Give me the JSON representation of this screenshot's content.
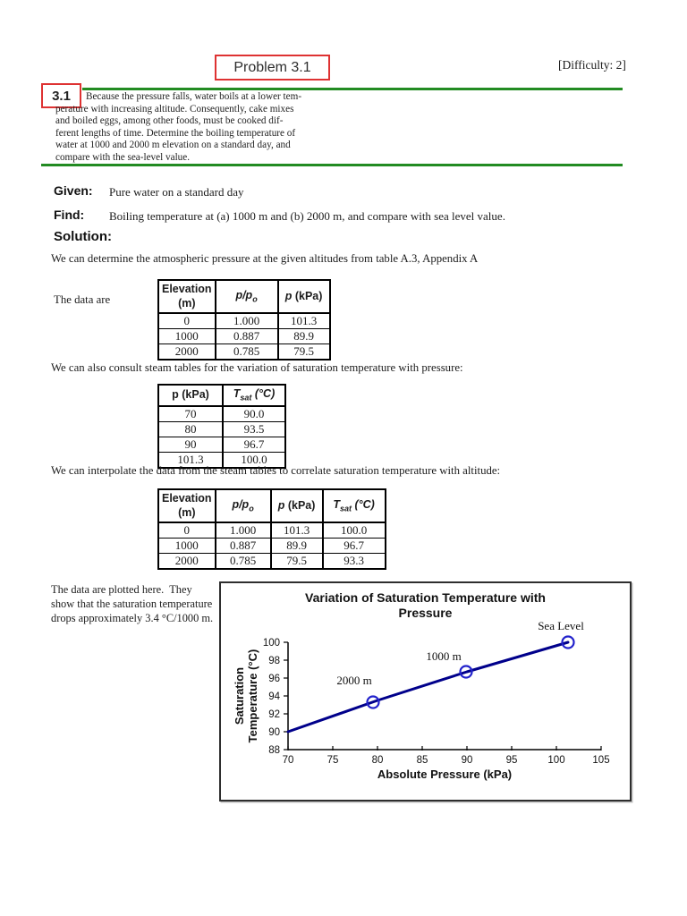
{
  "colors": {
    "accent_red": "#de3232",
    "rule_green": "#228b22",
    "line_navy": "#00008b",
    "marker_blue": "#2222cc",
    "text": "#1c1c1c"
  },
  "header": {
    "problem_label": "Problem 3.1",
    "difficulty": "[Difficulty: 2]"
  },
  "problem": {
    "tag": "3.1",
    "statement": "Because the pressure falls, water boils at a lower tem-\nperature with increasing altitude. Consequently, cake mixes\nand boiled eggs, among other foods, must be cooked dif-\nferent lengths of time. Determine the boiling temperature of\nwater at 1000 and 2000 m elevation on a standard day, and\ncompare with the sea-level value."
  },
  "sections": {
    "given_label": "Given:",
    "given_text": "Pure water on a standard day",
    "find_label": "Find:",
    "find_text": "Boiling temperature at (a) 1000 m and (b) 2000 m, and compare with sea level value.",
    "solution_label": "Solution:",
    "para_atmos": "We can determine the atmospheric pressure at the given altitudes from table A.3, Appendix A",
    "table1_label": "The data are",
    "para_steam": "We can also consult steam tables for the variation of saturation temperature with pressure:",
    "para_interp": "We can interpolate the data from the steam tables to correlate saturation temperature with altitude:",
    "plot_note": "The data are plotted here.  They\nshow that the saturation temperature\ndrops approximately 3.4 °C/1000 m."
  },
  "tables": {
    "atmos": {
      "columns": [
        {
          "segments": [
            {
              "t": "Elevation\n(m)"
            }
          ]
        },
        {
          "segments": [
            {
              "t": "p/p",
              "i": true
            },
            {
              "t": "o",
              "i": true,
              "sub": true
            }
          ]
        },
        {
          "segments": [
            {
              "t": "p",
              "i": true
            },
            {
              "t": " (kPa)"
            }
          ]
        }
      ],
      "rows": [
        [
          "0",
          "1.000",
          "101.3"
        ],
        [
          "1000",
          "0.887",
          "89.9"
        ],
        [
          "2000",
          "0.785",
          "79.5"
        ]
      ]
    },
    "steam": {
      "columns": [
        {
          "segments": [
            {
              "t": "p (kPa)"
            }
          ]
        },
        {
          "segments": [
            {
              "t": "T",
              "i": true
            },
            {
              "t": "sat",
              "i": true,
              "sub": true
            },
            {
              "t": " (°C)",
              "i": true
            }
          ]
        }
      ],
      "rows": [
        [
          "70",
          "90.0"
        ],
        [
          "80",
          "93.5"
        ],
        [
          "90",
          "96.7"
        ],
        [
          "101.3",
          "100.0"
        ]
      ]
    },
    "combined": {
      "columns": [
        {
          "segments": [
            {
              "t": "Elevation\n(m)"
            }
          ]
        },
        {
          "segments": [
            {
              "t": "p/p",
              "i": true
            },
            {
              "t": "o",
              "i": true,
              "sub": true
            }
          ]
        },
        {
          "segments": [
            {
              "t": "p",
              "i": true
            },
            {
              "t": " (kPa)"
            }
          ]
        },
        {
          "segments": [
            {
              "t": "T",
              "i": true
            },
            {
              "t": "sat",
              "i": true,
              "sub": true
            },
            {
              "t": " (°C)",
              "i": true
            }
          ]
        }
      ],
      "rows": [
        [
          "0",
          "1.000",
          "101.3",
          "100.0"
        ],
        [
          "1000",
          "0.887",
          "89.9",
          "96.7"
        ],
        [
          "2000",
          "0.785",
          "79.5",
          "93.3"
        ]
      ]
    }
  },
  "chart_data": {
    "type": "line",
    "title": "Variation of Saturation Temperature with\nPressure",
    "xlabel": "Absolute Pressure (kPa)",
    "ylabel": "Saturation\nTemperature (°C)",
    "xlim": [
      70,
      105
    ],
    "ylim": [
      88,
      100
    ],
    "xticks": [
      70,
      75,
      80,
      85,
      90,
      95,
      100,
      105
    ],
    "yticks": [
      88,
      90,
      92,
      94,
      96,
      98,
      100
    ],
    "grid": false,
    "legend": "none",
    "series": [
      {
        "name": "saturation-temperature-curve",
        "x": [
          70,
          80,
          90,
          101.3
        ],
        "y": [
          90.0,
          93.5,
          96.7,
          100.0
        ],
        "marker": "none",
        "color": "#00008b"
      },
      {
        "name": "altitude-points",
        "x": [
          79.5,
          89.9,
          101.3
        ],
        "y": [
          93.3,
          96.7,
          100.0
        ],
        "marker": "circle",
        "color": "#2222cc",
        "point_labels": [
          {
            "text": "2000 m",
            "dx": -21,
            "dy": -20
          },
          {
            "text": "1000 m",
            "dx": -25,
            "dy": -13
          },
          {
            "text": "Sea Level",
            "dx": -8,
            "dy": -14
          }
        ]
      }
    ]
  }
}
